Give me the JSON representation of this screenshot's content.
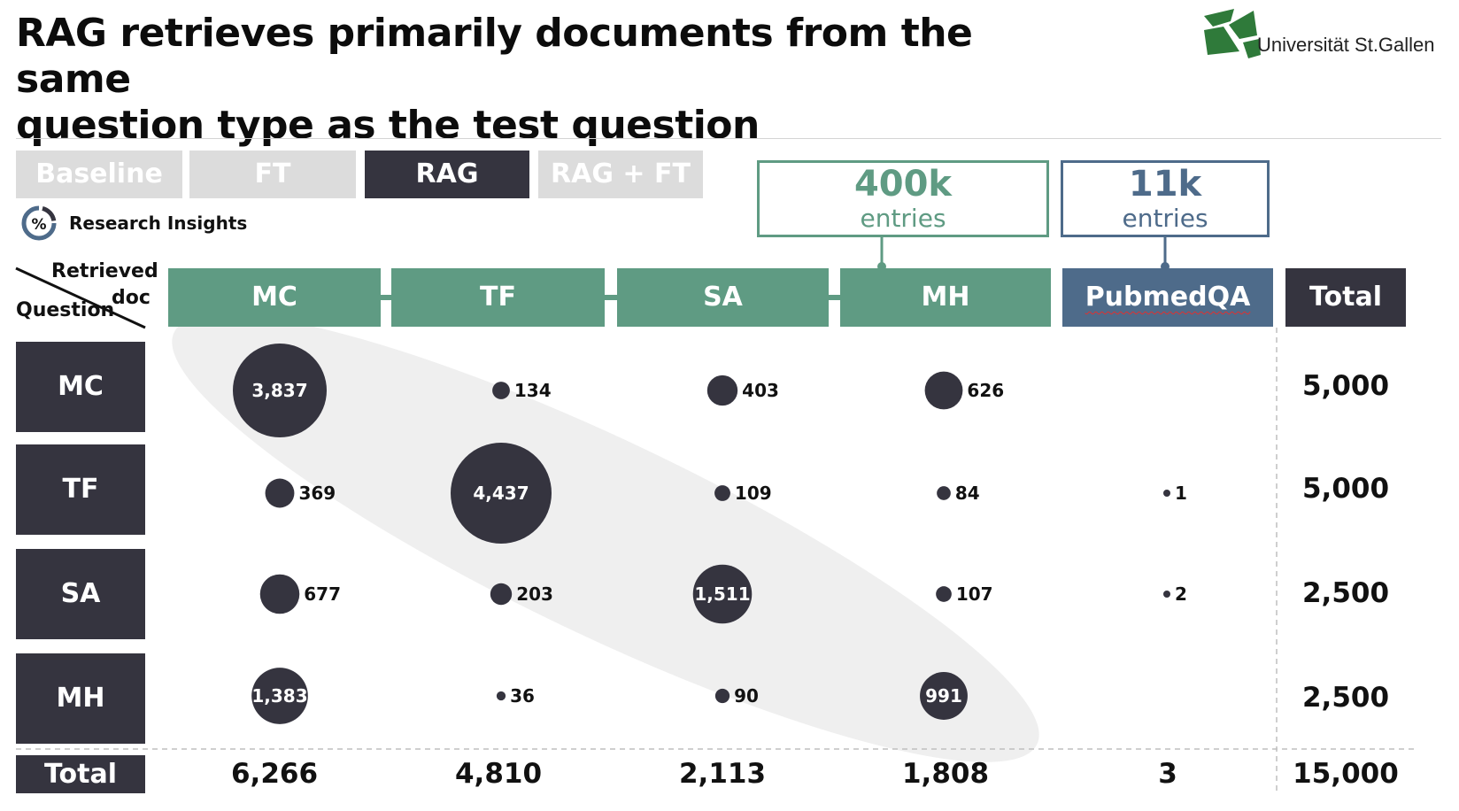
{
  "title_lines": [
    "RAG retrieves primarily documents from the same",
    "question type as the test question"
  ],
  "logo": {
    "text": "Universität St.Gallen",
    "icon": "hsg-logo-icon",
    "color": "#2f7a3a"
  },
  "tabs": [
    {
      "label": "Baseline",
      "active": false
    },
    {
      "label": "FT",
      "active": false
    },
    {
      "label": "RAG",
      "active": true
    },
    {
      "label": "RAG + FT",
      "active": false
    }
  ],
  "research_insights": {
    "label": "Research Insights",
    "icon": "percent-gauge-icon"
  },
  "entry_boxes": [
    {
      "value": "400k",
      "unit": "entries",
      "color": "#5f9b83"
    },
    {
      "value": "11k",
      "unit": "entries",
      "color": "#4e6b8a"
    }
  ],
  "corner": {
    "top": "Retrieved",
    "doc": "doc",
    "left": "Question"
  },
  "colors": {
    "green": "#5f9b83",
    "blue": "#4e6b8a",
    "dark": "#35343f",
    "inactive": "#dcdcdc",
    "highlight": "#efefef"
  },
  "chart_data": {
    "type": "bubble",
    "x_header": "Retrieved doc",
    "y_header": "Question",
    "columns": [
      "MC",
      "TF",
      "SA",
      "MH",
      "PubmedQA"
    ],
    "rows": [
      "MC",
      "TF",
      "SA",
      "MH"
    ],
    "values": [
      [
        3837,
        134,
        403,
        626,
        null
      ],
      [
        369,
        4437,
        109,
        84,
        1
      ],
      [
        677,
        203,
        1511,
        107,
        2
      ],
      [
        1383,
        36,
        90,
        991,
        null
      ]
    ],
    "labels": [
      [
        "3,837",
        "134",
        "403",
        "626",
        ""
      ],
      [
        "369",
        "4,437",
        "109",
        "84",
        "1"
      ],
      [
        "677",
        "203",
        "1,511",
        "107",
        "2"
      ],
      [
        "1,383",
        "36",
        "90",
        "991",
        ""
      ]
    ],
    "total_label": "Total",
    "row_totals": [
      "5,000",
      "5,000",
      "2,500",
      "2,500"
    ],
    "column_totals": [
      "6,266",
      "4,810",
      "2,113",
      "1,808",
      "3"
    ],
    "grand_total": "15,000"
  }
}
